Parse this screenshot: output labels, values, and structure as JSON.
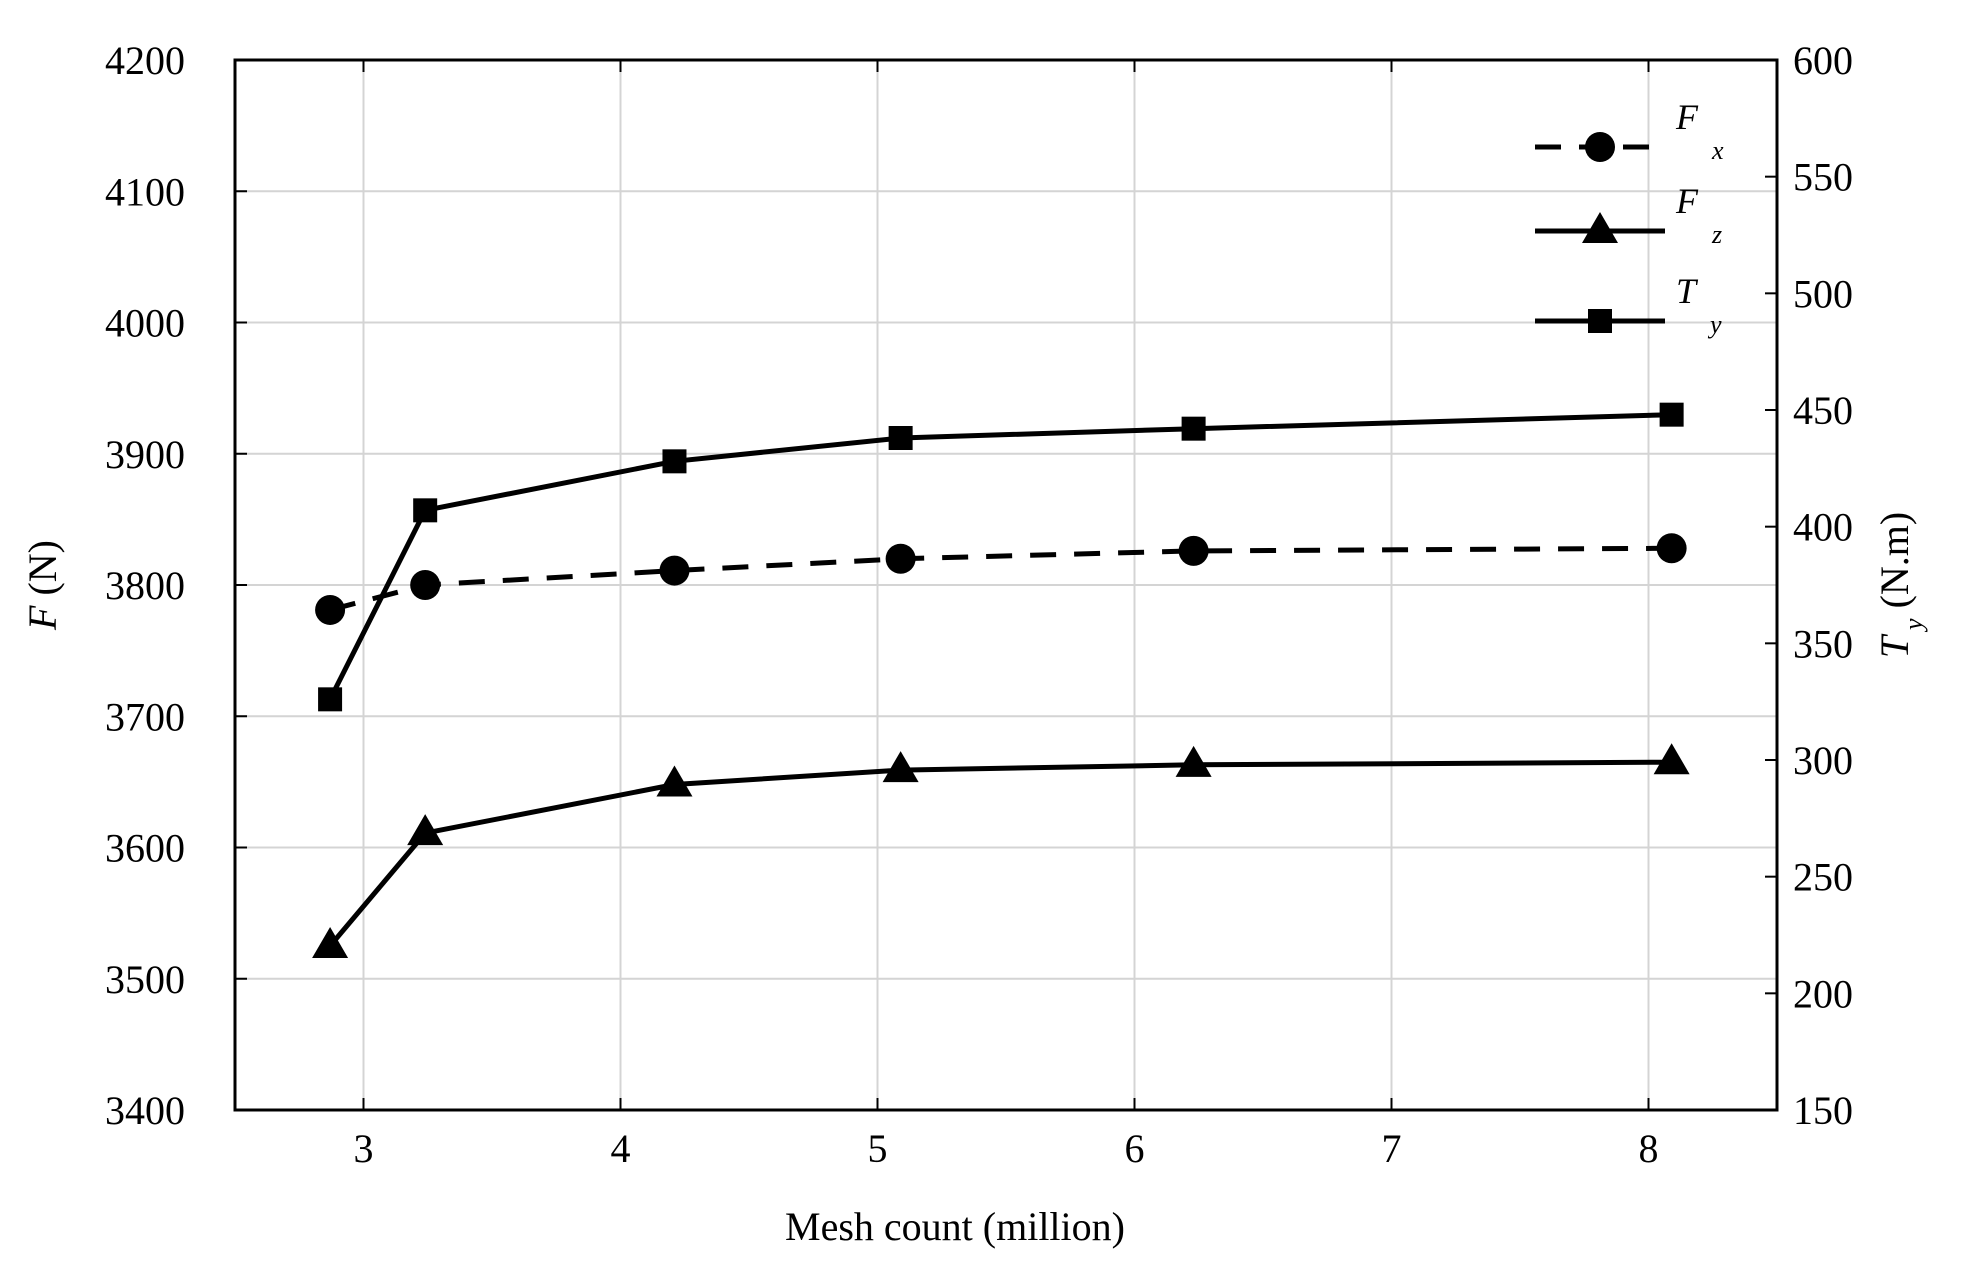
{
  "chart_data": {
    "type": "line",
    "xlabel": "Mesh count (million)",
    "ylabel_left": {
      "symbol": "F",
      "unit": "(N)"
    },
    "ylabel_right": {
      "symbol": "T",
      "subscript": "y",
      "unit": "(N.m)"
    },
    "xlim": [
      2.5,
      8.5
    ],
    "ylim_left": [
      3400,
      4200
    ],
    "ylim_right": [
      150,
      600
    ],
    "x_ticks": [
      3,
      4,
      5,
      6,
      7,
      8
    ],
    "y_ticks_left": [
      3400,
      3500,
      3600,
      3700,
      3800,
      3900,
      4000,
      4100,
      4200
    ],
    "y_ticks_right": [
      150,
      200,
      250,
      300,
      350,
      400,
      450,
      500,
      550,
      600
    ],
    "grid": true,
    "legend_position": "top-right",
    "series": [
      {
        "name": "F",
        "subscript": "x",
        "axis": "left",
        "line_style": "dashed",
        "marker": "circle",
        "color": "#000000",
        "x": [
          2.87,
          3.24,
          4.21,
          5.09,
          6.23,
          8.09
        ],
        "y": [
          3781,
          3800,
          3811,
          3820,
          3826,
          3828
        ]
      },
      {
        "name": "F",
        "subscript": "z",
        "axis": "left",
        "line_style": "solid",
        "marker": "triangle",
        "color": "#000000",
        "x": [
          2.87,
          3.24,
          4.21,
          5.09,
          6.23,
          8.09
        ],
        "y": [
          3525,
          3611,
          3648,
          3659,
          3663,
          3665
        ]
      },
      {
        "name": "T",
        "subscript": "y",
        "axis": "right",
        "line_style": "solid",
        "marker": "square",
        "color": "#000000",
        "x": [
          2.87,
          3.24,
          4.21,
          5.09,
          6.23,
          8.09
        ],
        "y": [
          326,
          407,
          428,
          438,
          442,
          448
        ]
      }
    ]
  }
}
